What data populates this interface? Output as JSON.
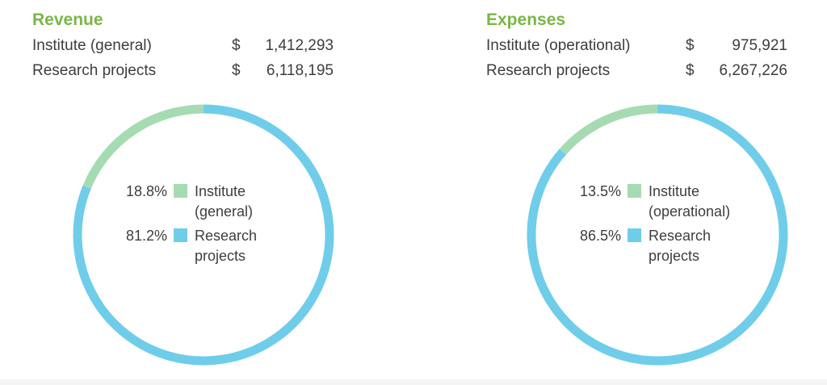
{
  "colors": {
    "accent_green": "#7ab648",
    "institute": "#a6dbb2",
    "research": "#6fcdea",
    "text": "#3d3d3d"
  },
  "panels": [
    {
      "title": "Revenue",
      "rows": [
        {
          "label": "Institute (general)",
          "currency": "$",
          "amount": "1,412,293"
        },
        {
          "label": "Research projects",
          "currency": "$",
          "amount": "6,118,195"
        }
      ]
    },
    {
      "title": "Expenses",
      "rows": [
        {
          "label": "Institute (operational)",
          "currency": "$",
          "amount": "975,921"
        },
        {
          "label": "Research projects",
          "currency": "$",
          "amount": "6,267,226"
        }
      ]
    }
  ],
  "chart_data": [
    {
      "type": "pie",
      "title": "Revenue",
      "categories": [
        "Institute (general)",
        "Research projects"
      ],
      "values": [
        18.8,
        81.2
      ],
      "labels": [
        "18.8%",
        "81.2%"
      ],
      "legend": [
        {
          "pct": "18.8%",
          "lines": [
            "Institute",
            "(general)"
          ],
          "color": "#a6dbb2"
        },
        {
          "pct": "81.2%",
          "lines": [
            "Research",
            "projects"
          ],
          "color": "#6fcdea"
        }
      ],
      "legend_placement": "center"
    },
    {
      "type": "pie",
      "title": "Expenses",
      "categories": [
        "Institute (operational)",
        "Research projects"
      ],
      "values": [
        13.5,
        86.5
      ],
      "labels": [
        "13.5%",
        "86.5%"
      ],
      "legend": [
        {
          "pct": "13.5%",
          "lines": [
            "Institute",
            "(operational)"
          ],
          "color": "#a6dbb2"
        },
        {
          "pct": "86.5%",
          "lines": [
            "Research",
            "projects"
          ],
          "color": "#6fcdea"
        }
      ],
      "legend_placement": "center"
    }
  ]
}
